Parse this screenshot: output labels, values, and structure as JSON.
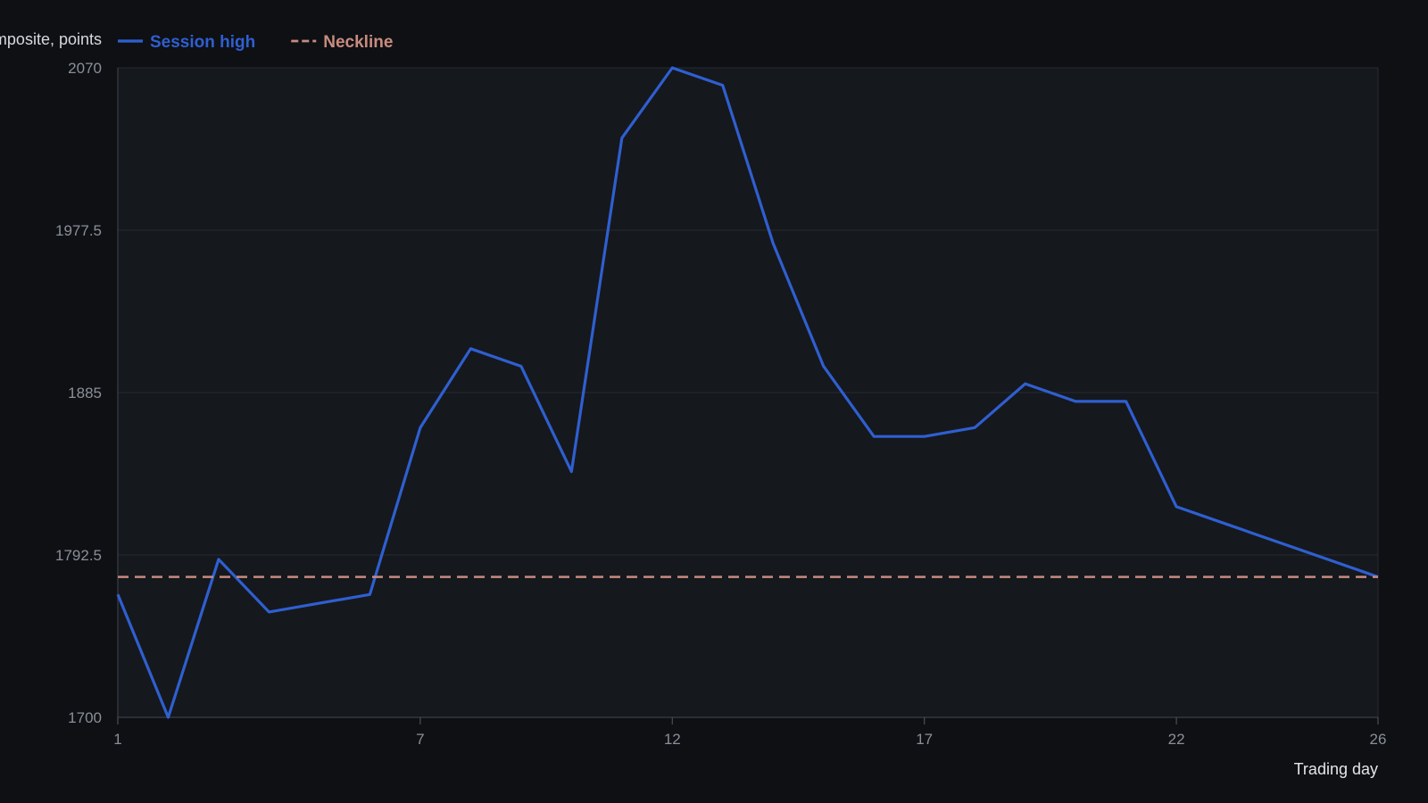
{
  "chart_data": {
    "type": "line",
    "ylabel": "Composite, points",
    "xlabel": "Trading day",
    "x": [
      1,
      2,
      3,
      4,
      5,
      6,
      7,
      8,
      9,
      10,
      11,
      12,
      13,
      14,
      15,
      16,
      17,
      18,
      19,
      20,
      21,
      22,
      23,
      24,
      25,
      26
    ],
    "xticks": [
      1,
      7,
      12,
      17,
      22,
      26
    ],
    "yticks": [
      1700,
      1792.5,
      1885,
      1977.5,
      2070
    ],
    "ylim": [
      1700,
      2070
    ],
    "grid": true,
    "legend_position": "top-left",
    "series": [
      {
        "name": "Session high",
        "color": "#2f5fd0",
        "style": "solid",
        "values": [
          1770,
          1700,
          1790,
          1760,
          1765,
          1770,
          1865,
          1910,
          1900,
          1840,
          2030,
          2070,
          2060,
          1970,
          1900,
          1860,
          1860,
          1865,
          1890,
          1880,
          1880,
          1820,
          1810,
          1800,
          1790,
          1780
        ]
      },
      {
        "name": "Neckline",
        "color": "#c98b7e",
        "style": "dashed",
        "values": [
          1780,
          1780,
          1780,
          1780,
          1780,
          1780,
          1780,
          1780,
          1780,
          1780,
          1780,
          1780,
          1780,
          1780,
          1780,
          1780,
          1780,
          1780,
          1780,
          1780,
          1780,
          1780,
          1780,
          1780,
          1780,
          1780
        ]
      }
    ]
  }
}
